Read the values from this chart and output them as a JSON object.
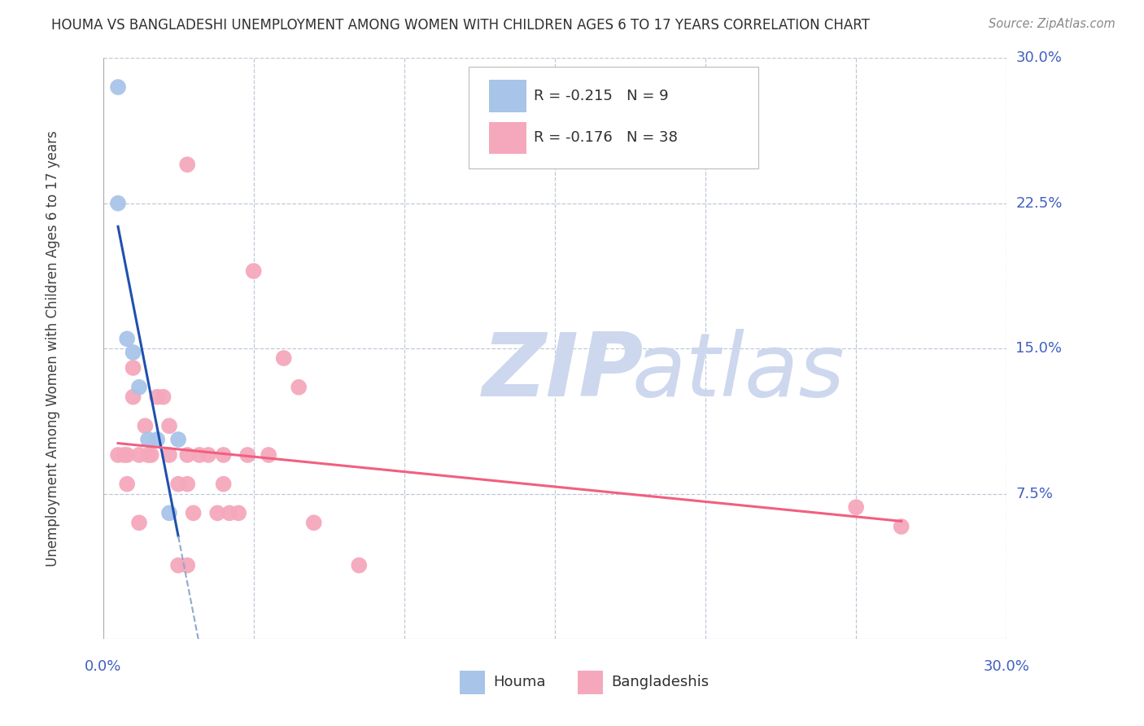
{
  "title": "HOUMA VS BANGLADESHI UNEMPLOYMENT AMONG WOMEN WITH CHILDREN AGES 6 TO 17 YEARS CORRELATION CHART",
  "source": "Source: ZipAtlas.com",
  "ylabel": "Unemployment Among Women with Children Ages 6 to 17 years",
  "ytick_labels": [
    "30.0%",
    "22.5%",
    "15.0%",
    "7.5%"
  ],
  "ytick_values": [
    0.3,
    0.225,
    0.15,
    0.075
  ],
  "xtick_values": [
    0.0,
    0.05,
    0.1,
    0.15,
    0.2,
    0.25,
    0.3
  ],
  "xmin": 0.0,
  "xmax": 0.3,
  "ymin": 0.0,
  "ymax": 0.3,
  "houma_R": -0.215,
  "houma_N": 9,
  "bangladeshi_R": -0.176,
  "bangladeshi_N": 38,
  "houma_color": "#a8c4e8",
  "bangladeshi_color": "#f5a8bc",
  "houma_line_color": "#2050b0",
  "bangladeshi_line_color": "#f06080",
  "trend_ext_color": "#90a8cc",
  "houma_points": [
    [
      0.005,
      0.285
    ],
    [
      0.005,
      0.225
    ],
    [
      0.008,
      0.155
    ],
    [
      0.01,
      0.148
    ],
    [
      0.012,
      0.13
    ],
    [
      0.015,
      0.103
    ],
    [
      0.018,
      0.103
    ],
    [
      0.022,
      0.065
    ],
    [
      0.025,
      0.103
    ]
  ],
  "bangladeshi_points": [
    [
      0.028,
      0.245
    ],
    [
      0.005,
      0.095
    ],
    [
      0.007,
      0.095
    ],
    [
      0.008,
      0.08
    ],
    [
      0.008,
      0.095
    ],
    [
      0.01,
      0.14
    ],
    [
      0.01,
      0.125
    ],
    [
      0.012,
      0.095
    ],
    [
      0.012,
      0.06
    ],
    [
      0.014,
      0.11
    ],
    [
      0.015,
      0.095
    ],
    [
      0.016,
      0.095
    ],
    [
      0.018,
      0.125
    ],
    [
      0.02,
      0.125
    ],
    [
      0.022,
      0.11
    ],
    [
      0.022,
      0.095
    ],
    [
      0.025,
      0.08
    ],
    [
      0.025,
      0.038
    ],
    [
      0.028,
      0.095
    ],
    [
      0.028,
      0.08
    ],
    [
      0.028,
      0.038
    ],
    [
      0.03,
      0.065
    ],
    [
      0.032,
      0.095
    ],
    [
      0.035,
      0.095
    ],
    [
      0.038,
      0.065
    ],
    [
      0.04,
      0.08
    ],
    [
      0.04,
      0.095
    ],
    [
      0.042,
      0.065
    ],
    [
      0.045,
      0.065
    ],
    [
      0.048,
      0.095
    ],
    [
      0.05,
      0.19
    ],
    [
      0.055,
      0.095
    ],
    [
      0.06,
      0.145
    ],
    [
      0.065,
      0.13
    ],
    [
      0.07,
      0.06
    ],
    [
      0.085,
      0.038
    ],
    [
      0.25,
      0.068
    ],
    [
      0.265,
      0.058
    ]
  ],
  "watermark_color": "#cdd8ee",
  "legend_houma_label": "Houma",
  "legend_bangladeshi_label": "Bangladeshis",
  "background_color": "#ffffff",
  "grid_color": "#c0c8d8",
  "tick_label_color": "#4060c0",
  "title_color": "#303030",
  "source_color": "#888888"
}
